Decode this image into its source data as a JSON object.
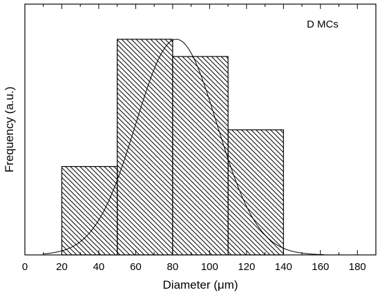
{
  "chart_data": {
    "type": "bar",
    "title": "",
    "annotation": "D MCs",
    "xlabel": "Diameter (μm)",
    "ylabel": "Frequency (a.u.)",
    "xlim": [
      0,
      190
    ],
    "ylim": [
      0,
      1.0
    ],
    "x_ticks": [
      0,
      20,
      40,
      60,
      80,
      100,
      120,
      140,
      160,
      180
    ],
    "y_tick_labels_shown": false,
    "bins": [
      {
        "start": 20,
        "end": 50,
        "value": 0.41
      },
      {
        "start": 50,
        "end": 80,
        "value": 1.0
      },
      {
        "start": 80,
        "end": 110,
        "value": 0.92
      },
      {
        "start": 110,
        "end": 140,
        "value": 0.58
      }
    ],
    "fit_curve": {
      "type": "gaussian",
      "mean": 82,
      "sd": 22,
      "peak": 1.0,
      "x_range": [
        10,
        162
      ]
    },
    "grid": false,
    "legend": "none",
    "bar_fill": "diagonal-hatch",
    "colors": {
      "stroke": "#000000",
      "background": "#ffffff"
    }
  }
}
